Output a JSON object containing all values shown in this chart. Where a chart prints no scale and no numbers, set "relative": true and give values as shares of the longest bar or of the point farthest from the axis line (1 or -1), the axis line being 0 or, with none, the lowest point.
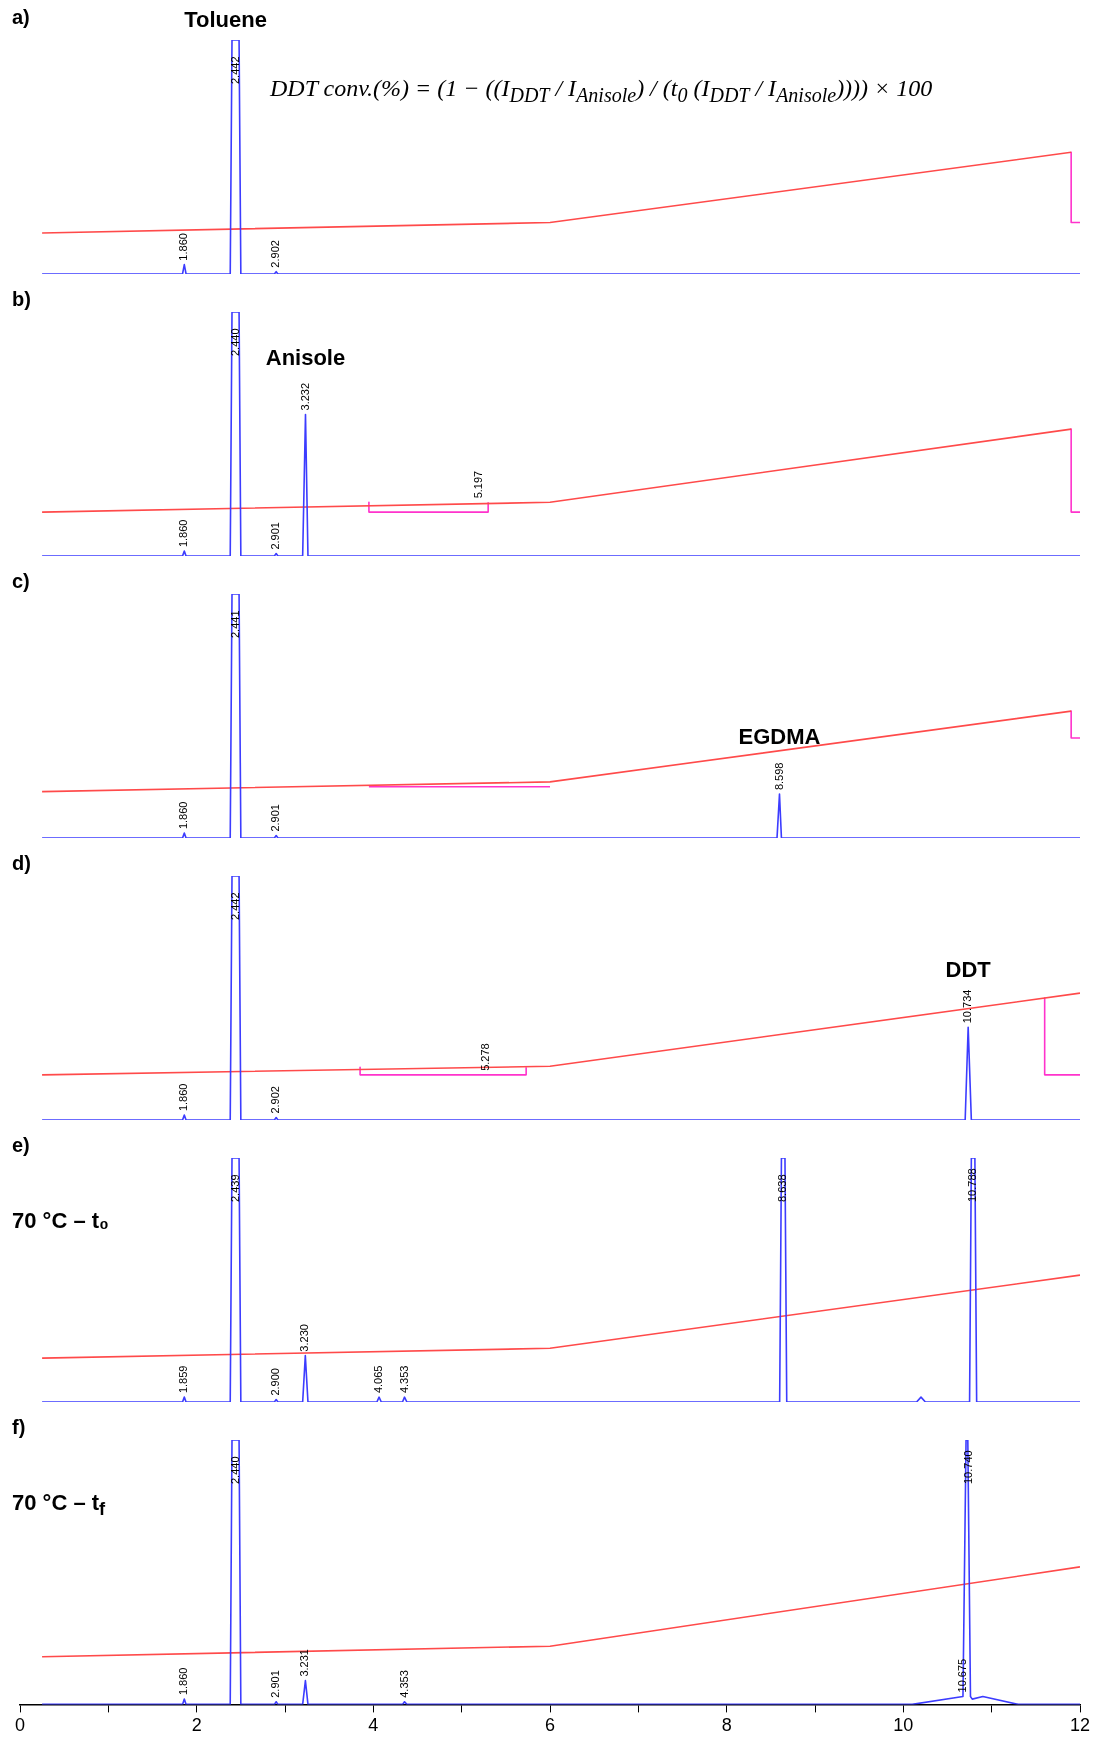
{
  "chart_data": [
    {
      "type": "line",
      "relative": true,
      "xlim": [
        0,
        12
      ],
      "tick_labels": false,
      "grid": false,
      "legend": false,
      "marker": "none",
      "line_style": "solid",
      "annotations": [
        "a)",
        "DDT conv.(%) = (1 − ((I$_{DDT}$ / I$_{Anisole}$) / (t$_{0}$ (I$_{DDT}$ / I$_{Anisole}$)))) × 100",
        {
          "text": "Toluene",
          "x": 2.44,
          "y": 1
        },
        {
          "text": "1.860",
          "x": 1.86,
          "y": 0.04
        },
        {
          "text": "2.442",
          "x": 2.44,
          "y": 1
        },
        {
          "text": "2.902",
          "x": 2.9,
          "y": 0.01
        }
      ],
      "series": [
        {
          "color": "#3c3cff",
          "x": [
            0.25,
            1.84,
            1.86,
            1.88,
            2.38,
            2.4,
            2.48,
            2.5,
            2.88,
            2.9,
            2.92,
            12
          ],
          "values": [
            0,
            0,
            0.04,
            0,
            0,
            1,
            1,
            0,
            0,
            0.01,
            0,
            0
          ]
        },
        {
          "color": "#ff4a4a",
          "x": [
            0.25,
            6,
            11.9
          ],
          "values": [
            0.175,
            0.22,
            0.52
          ]
        },
        {
          "color": "#ff33cc",
          "x": [
            11.9,
            11.9,
            12
          ],
          "values": [
            0.52,
            0.22,
            0.22
          ]
        }
      ]
    },
    {
      "type": "line",
      "relative": true,
      "xlim": [
        0,
        12
      ],
      "tick_labels": false,
      "grid": false,
      "legend": false,
      "marker": "none",
      "line_style": "solid",
      "annotations": [
        "b)",
        {
          "text": "Anisole",
          "x": 3.232,
          "y": 0.58
        },
        {
          "text": "1.860",
          "x": 1.86,
          "y": 0.02
        },
        {
          "text": "2.440",
          "x": 2.44,
          "y": 1
        },
        {
          "text": "2.901",
          "x": 2.9,
          "y": 0.01
        },
        {
          "text": "3.232",
          "x": 3.232,
          "y": 0.58
        },
        {
          "text": "5.197",
          "x": 5.2,
          "y": 0.22
        }
      ],
      "series": [
        {
          "color": "#3c3cff",
          "x": [
            0.25,
            1.84,
            1.86,
            1.88,
            2.38,
            2.4,
            2.48,
            2.5,
            2.88,
            2.9,
            2.92,
            3.2,
            3.232,
            3.26,
            12
          ],
          "values": [
            0,
            0,
            0.02,
            0,
            0,
            1,
            1,
            0,
            0,
            0.01,
            0,
            0,
            0.58,
            0,
            0
          ]
        },
        {
          "color": "#ff4a4a",
          "x": [
            0.25,
            6,
            11.9
          ],
          "values": [
            0.18,
            0.22,
            0.52
          ]
        },
        {
          "color": "#ff33cc",
          "x": [
            3.95,
            3.95,
            5.3,
            5.3,
            null,
            11.9,
            11.9,
            12
          ],
          "values": [
            0.22,
            0.18,
            0.18,
            0.22,
            null,
            0.52,
            0.18,
            0.18
          ]
        }
      ]
    },
    {
      "type": "line",
      "relative": true,
      "xlim": [
        0,
        12
      ],
      "tick_labels": false,
      "grid": false,
      "legend": false,
      "marker": "none",
      "line_style": "solid",
      "annotations": [
        "c)",
        {
          "text": "EGDMA",
          "x": 8.598,
          "y": 0.18
        },
        {
          "text": "1.860",
          "x": 1.86,
          "y": 0.02
        },
        {
          "text": "2.441",
          "x": 2.44,
          "y": 1
        },
        {
          "text": "2.901",
          "x": 2.9,
          "y": 0.01
        },
        {
          "text": "8.598",
          "x": 8.598,
          "y": 0.18
        }
      ],
      "series": [
        {
          "color": "#3c3cff",
          "x": [
            0.25,
            1.84,
            1.86,
            1.88,
            2.38,
            2.4,
            2.48,
            2.5,
            2.88,
            2.9,
            2.92,
            8.57,
            8.598,
            8.62,
            12
          ],
          "values": [
            0,
            0,
            0.02,
            0,
            0,
            1,
            1,
            0,
            0,
            0.01,
            0,
            0,
            0.18,
            0,
            0
          ]
        },
        {
          "color": "#ff4a4a",
          "x": [
            0.25,
            6,
            11.9
          ],
          "values": [
            0.19,
            0.23,
            0.52
          ]
        },
        {
          "color": "#ff33cc",
          "x": [
            3.95,
            6,
            null,
            11.9,
            11.9,
            12
          ],
          "values": [
            0.21,
            0.21,
            null,
            0.52,
            0.41,
            0.41
          ]
        }
      ]
    },
    {
      "type": "line",
      "relative": true,
      "xlim": [
        0,
        12
      ],
      "tick_labels": false,
      "grid": false,
      "legend": false,
      "marker": "none",
      "line_style": "solid",
      "annotations": [
        "d)",
        {
          "text": "DDT",
          "x": 10.734,
          "y": 0.38
        },
        {
          "text": "1.860",
          "x": 1.86,
          "y": 0.02
        },
        {
          "text": "2.442",
          "x": 2.44,
          "y": 1
        },
        {
          "text": "2.902",
          "x": 2.9,
          "y": 0.01
        },
        {
          "text": "5.278",
          "x": 5.28,
          "y": 0.185
        },
        {
          "text": "10.734",
          "x": 10.734,
          "y": 0.38
        }
      ],
      "series": [
        {
          "color": "#3c3cff",
          "x": [
            0.25,
            1.84,
            1.86,
            1.88,
            2.38,
            2.4,
            2.48,
            2.5,
            2.88,
            2.9,
            2.92,
            10.7,
            10.734,
            10.77,
            12
          ],
          "values": [
            0,
            0,
            0.02,
            0,
            0,
            1,
            1,
            0,
            0,
            0.01,
            0,
            0,
            0.38,
            0,
            0
          ]
        },
        {
          "color": "#ff4a4a",
          "x": [
            0.25,
            6,
            12
          ],
          "values": [
            0.185,
            0.22,
            0.52
          ]
        },
        {
          "color": "#ff33cc",
          "x": [
            3.85,
            3.85,
            5.73,
            5.73,
            null,
            11.6,
            11.6,
            12
          ],
          "values": [
            0.216,
            0.185,
            0.185,
            0.216,
            null,
            0.5,
            0.185,
            0.185
          ]
        }
      ]
    },
    {
      "type": "line",
      "relative": true,
      "xlim": [
        0,
        12
      ],
      "tick_labels": false,
      "grid": false,
      "legend": false,
      "marker": "none",
      "line_style": "solid",
      "annotations": [
        "e)",
        "70 °C – t₀",
        {
          "text": "1.859",
          "x": 1.86,
          "y": 0.02
        },
        {
          "text": "2.439",
          "x": 2.44,
          "y": 1
        },
        {
          "text": "2.900",
          "x": 2.9,
          "y": 0.01
        },
        {
          "text": "3.230",
          "x": 3.23,
          "y": 0.19
        },
        {
          "text": "4.065",
          "x": 4.065,
          "y": 0.02
        },
        {
          "text": "4.353",
          "x": 4.353,
          "y": 0.02
        },
        {
          "text": "8.638",
          "x": 8.638,
          "y": 1
        },
        {
          "text": "10.788",
          "x": 10.788,
          "y": 1
        }
      ],
      "series": [
        {
          "color": "#3c3cff",
          "x": [
            0.25,
            1.84,
            1.86,
            1.88,
            2.38,
            2.4,
            2.48,
            2.5,
            2.88,
            2.9,
            2.92,
            3.2,
            3.23,
            3.26,
            4.04,
            4.065,
            4.09,
            4.33,
            4.353,
            4.38,
            8.6,
            8.62,
            8.66,
            8.68,
            10.15,
            10.2,
            10.25,
            10.75,
            10.77,
            10.81,
            10.83,
            12
          ],
          "values": [
            0,
            0,
            0.02,
            0,
            0,
            1,
            1,
            0,
            0,
            0.01,
            0,
            0,
            0.19,
            0,
            0,
            0.02,
            0,
            0,
            0.02,
            0,
            0,
            1,
            1,
            0,
            0,
            0.02,
            0,
            0,
            1,
            1,
            0,
            0
          ]
        },
        {
          "color": "#ff4a4a",
          "x": [
            0.25,
            6,
            12
          ],
          "values": [
            0.18,
            0.22,
            0.52
          ]
        }
      ]
    },
    {
      "type": "line",
      "relative": true,
      "xlim": [
        0,
        12
      ],
      "xticks": [
        0,
        {
          "value": 1,
          "label": null
        },
        2,
        {
          "value": 3,
          "label": null
        },
        4,
        {
          "value": 5,
          "label": null
        },
        6,
        {
          "value": 7,
          "label": null
        },
        8,
        {
          "value": 9,
          "label": null
        },
        10,
        {
          "value": 11,
          "label": null
        },
        12
      ],
      "tick_labels": "x",
      "grid": false,
      "legend": false,
      "marker": "none",
      "line_style": "solid",
      "annotations": [
        "f)",
        "70 °C – t$_{f}$",
        {
          "text": "1.860",
          "x": 1.86,
          "y": 0.02
        },
        {
          "text": "2.440",
          "x": 2.44,
          "y": 1
        },
        {
          "text": "2.901",
          "x": 2.9,
          "y": 0.01
        },
        {
          "text": "3.231",
          "x": 3.231,
          "y": 0.09
        },
        {
          "text": "4.353",
          "x": 4.353,
          "y": 0.01
        },
        {
          "text": "10.675",
          "x": 10.675,
          "y": 0.03
        },
        {
          "text": "10.740",
          "x": 10.74,
          "y": 1
        }
      ],
      "series": [
        {
          "color": "#3c3cff",
          "x": [
            0.25,
            1.84,
            1.86,
            1.88,
            2.38,
            2.4,
            2.48,
            2.5,
            2.88,
            2.9,
            2.92,
            3.2,
            3.231,
            3.26,
            4.33,
            4.353,
            4.38,
            10.1,
            10.675,
            10.71,
            10.73,
            10.76,
            10.78,
            10.9,
            11.3,
            12
          ],
          "values": [
            0,
            0,
            0.02,
            0,
            0,
            1,
            1,
            0,
            0,
            0.01,
            0,
            0,
            0.09,
            0,
            0,
            0.01,
            0,
            0,
            0.03,
            1,
            1,
            0.03,
            0.02,
            0.03,
            0,
            0
          ]
        },
        {
          "color": "#ff4a4a",
          "x": [
            0.25,
            6,
            12
          ],
          "values": [
            0.18,
            0.22,
            0.52
          ]
        }
      ]
    }
  ]
}
